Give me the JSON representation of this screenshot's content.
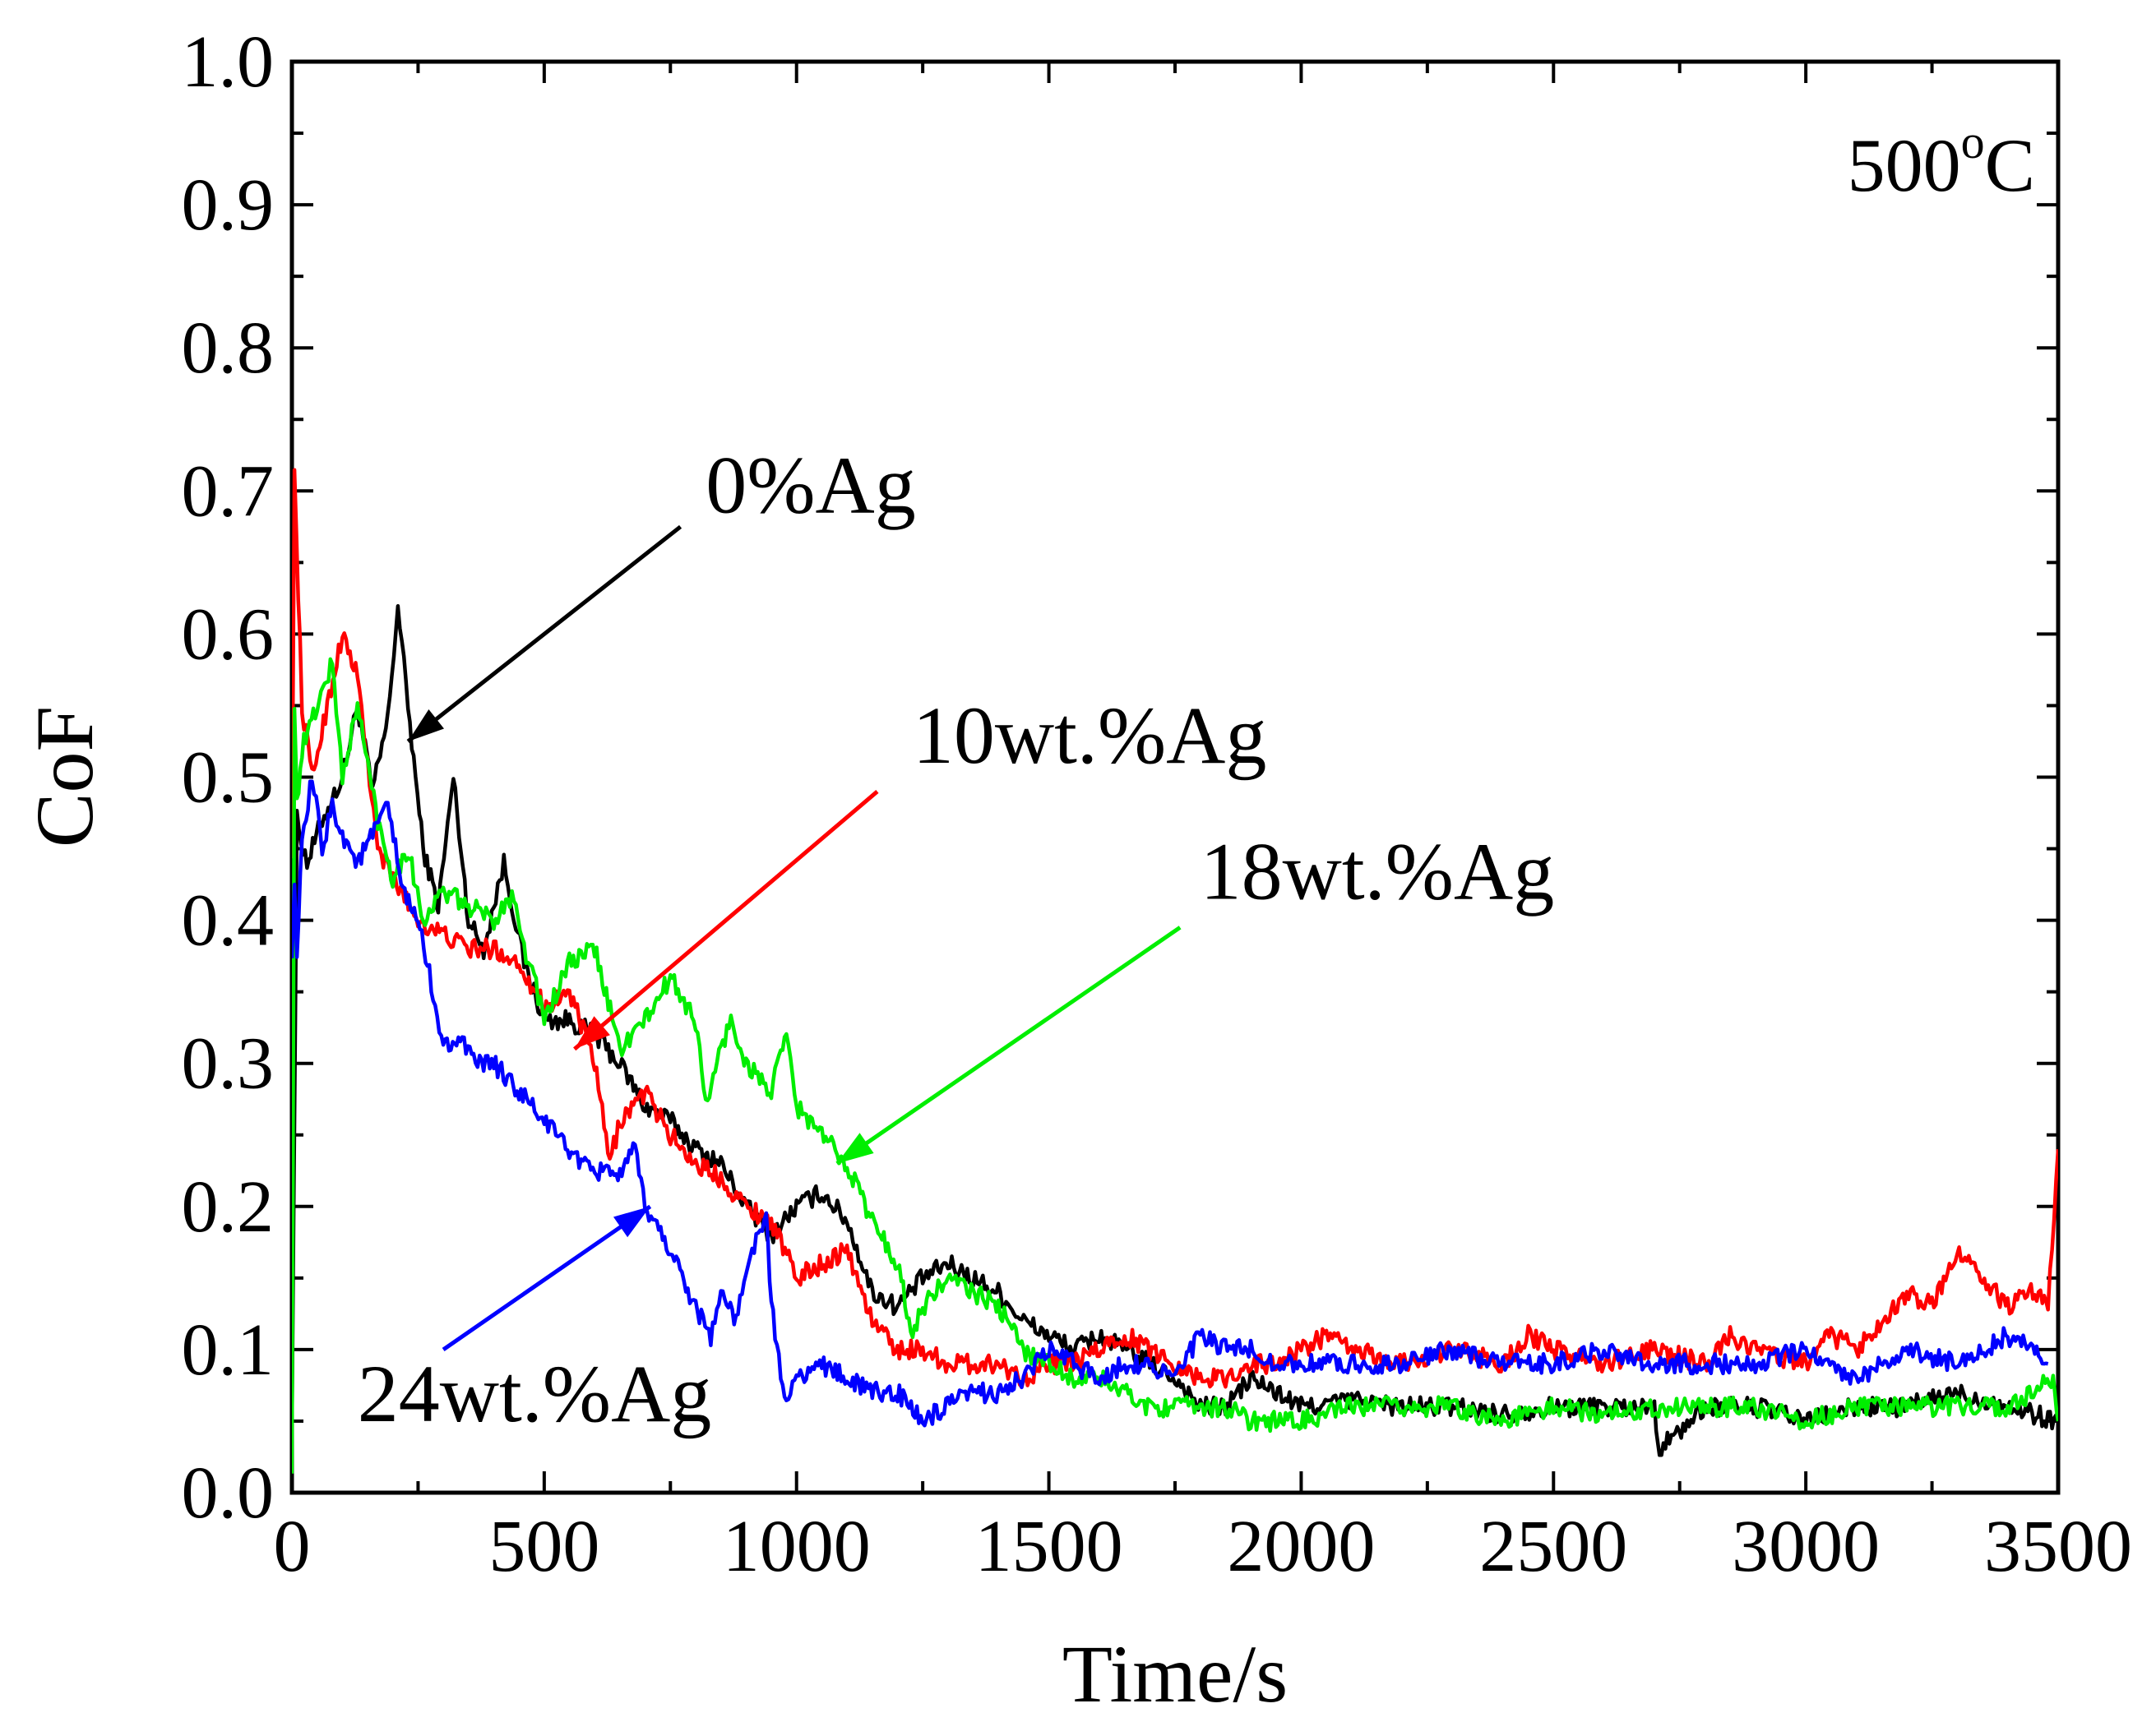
{
  "chart_data": {
    "type": "line",
    "title": "",
    "annotation_temperature": {
      "base": "500",
      "sup": "o",
      "unit": "C"
    },
    "xlabel": "Time/s",
    "ylabel": "CoF",
    "xlim": [
      0,
      3500
    ],
    "ylim": [
      0.0,
      1.0
    ],
    "xticks": [
      0,
      500,
      1000,
      1500,
      2000,
      2500,
      3000,
      3500
    ],
    "xtick_labels": [
      "0",
      "500",
      "1000",
      "1500",
      "2000",
      "2500",
      "3000",
      "3500"
    ],
    "yticks": [
      0.0,
      0.1,
      0.2,
      0.3,
      0.4,
      0.5,
      0.6,
      0.7,
      0.8,
      0.9,
      1.0
    ],
    "ytick_labels": [
      "0.0",
      "0.1",
      "0.2",
      "0.3",
      "0.4",
      "0.5",
      "0.6",
      "0.7",
      "0.8",
      "0.9",
      "1.0"
    ],
    "grid": false,
    "series": [
      {
        "name": "0%Ag",
        "color": "#000000",
        "x": [
          0,
          10,
          30,
          60,
          100,
          130,
          160,
          190,
          210,
          230,
          260,
          290,
          320,
          350,
          380,
          420,
          460,
          500,
          550,
          600,
          650,
          700,
          750,
          800,
          850,
          900,
          950,
          1000,
          1050,
          1100,
          1150,
          1200,
          1250,
          1300,
          1350,
          1400,
          1450,
          1500,
          1550,
          1600,
          1650,
          1700,
          1750,
          1800,
          1850,
          1900,
          1950,
          2000,
          2100,
          2200,
          2300,
          2400,
          2500,
          2600,
          2700,
          2710,
          2800,
          2900,
          3000,
          3100,
          3200,
          3300,
          3400,
          3500
        ],
        "y": [
          0.05,
          0.47,
          0.44,
          0.47,
          0.5,
          0.55,
          0.49,
          0.54,
          0.62,
          0.55,
          0.45,
          0.41,
          0.5,
          0.4,
          0.38,
          0.44,
          0.37,
          0.33,
          0.33,
          0.32,
          0.3,
          0.27,
          0.26,
          0.24,
          0.23,
          0.2,
          0.18,
          0.2,
          0.21,
          0.19,
          0.14,
          0.13,
          0.15,
          0.16,
          0.15,
          0.14,
          0.12,
          0.11,
          0.1,
          0.11,
          0.1,
          0.09,
          0.08,
          0.06,
          0.06,
          0.08,
          0.07,
          0.06,
          0.065,
          0.06,
          0.06,
          0.055,
          0.06,
          0.06,
          0.06,
          0.03,
          0.06,
          0.06,
          0.05,
          0.06,
          0.06,
          0.07,
          0.06,
          0.05
        ]
      },
      {
        "name": "10wt.%Ag",
        "color": "#ff0000",
        "x": [
          0,
          5,
          20,
          40,
          70,
          100,
          130,
          170,
          200,
          250,
          300,
          350,
          400,
          450,
          500,
          550,
          600,
          630,
          650,
          700,
          750,
          800,
          850,
          900,
          950,
          1000,
          1050,
          1100,
          1150,
          1200,
          1250,
          1300,
          1350,
          1400,
          1450,
          1500,
          1550,
          1600,
          1650,
          1700,
          1750,
          1800,
          1850,
          1900,
          1950,
          2000,
          2050,
          2100,
          2200,
          2300,
          2400,
          2450,
          2500,
          2600,
          2700,
          2800,
          2850,
          2900,
          3000,
          3050,
          3100,
          3150,
          3200,
          3250,
          3300,
          3350,
          3400,
          3450,
          3480,
          3500
        ],
        "y": [
          0.45,
          0.71,
          0.55,
          0.5,
          0.55,
          0.6,
          0.57,
          0.45,
          0.43,
          0.4,
          0.39,
          0.38,
          0.38,
          0.37,
          0.34,
          0.35,
          0.3,
          0.23,
          0.26,
          0.28,
          0.25,
          0.23,
          0.22,
          0.2,
          0.19,
          0.15,
          0.16,
          0.17,
          0.12,
          0.1,
          0.1,
          0.09,
          0.09,
          0.09,
          0.08,
          0.09,
          0.09,
          0.1,
          0.11,
          0.1,
          0.09,
          0.08,
          0.08,
          0.09,
          0.09,
          0.1,
          0.11,
          0.1,
          0.09,
          0.1,
          0.09,
          0.11,
          0.1,
          0.09,
          0.1,
          0.09,
          0.11,
          0.1,
          0.09,
          0.11,
          0.1,
          0.12,
          0.14,
          0.13,
          0.17,
          0.15,
          0.13,
          0.14,
          0.13,
          0.24
        ]
      },
      {
        "name": "18wt.%Ag",
        "color": "#00ee00",
        "x": [
          0,
          5,
          10,
          20,
          50,
          80,
          100,
          130,
          170,
          200,
          230,
          260,
          300,
          350,
          400,
          440,
          460,
          480,
          500,
          550,
          600,
          650,
          700,
          750,
          800,
          820,
          850,
          870,
          900,
          950,
          980,
          1000,
          1050,
          1100,
          1150,
          1200,
          1230,
          1250,
          1300,
          1350,
          1400,
          1450,
          1500,
          1550,
          1600,
          1650,
          1700,
          1750,
          1800,
          1850,
          1900,
          1950,
          2000,
          2100,
          2200,
          2300,
          2400,
          2500,
          2600,
          2700,
          2800,
          2900,
          3000,
          3100,
          3200,
          3300,
          3400,
          3490,
          3500
        ],
        "y": [
          0.02,
          0.55,
          0.48,
          0.52,
          0.55,
          0.58,
          0.5,
          0.55,
          0.47,
          0.43,
          0.45,
          0.4,
          0.42,
          0.41,
          0.4,
          0.42,
          0.38,
          0.36,
          0.33,
          0.37,
          0.38,
          0.31,
          0.33,
          0.36,
          0.33,
          0.27,
          0.31,
          0.33,
          0.3,
          0.28,
          0.32,
          0.27,
          0.25,
          0.23,
          0.19,
          0.16,
          0.11,
          0.13,
          0.15,
          0.14,
          0.13,
          0.1,
          0.09,
          0.08,
          0.08,
          0.07,
          0.06,
          0.06,
          0.06,
          0.06,
          0.05,
          0.05,
          0.05,
          0.06,
          0.06,
          0.06,
          0.05,
          0.06,
          0.055,
          0.06,
          0.06,
          0.06,
          0.05,
          0.06,
          0.06,
          0.06,
          0.06,
          0.08,
          0.05
        ]
      },
      {
        "name": "24wt.%Ag",
        "color": "#0000ff",
        "x": [
          0,
          5,
          10,
          20,
          40,
          60,
          80,
          100,
          130,
          160,
          190,
          220,
          250,
          280,
          300,
          330,
          360,
          400,
          450,
          500,
          550,
          600,
          620,
          650,
          680,
          700,
          750,
          800,
          830,
          850,
          880,
          900,
          920,
          940,
          950,
          980,
          1000,
          1050,
          1100,
          1150,
          1200,
          1250,
          1300,
          1350,
          1400,
          1450,
          1500,
          1550,
          1600,
          1650,
          1700,
          1750,
          1800,
          1850,
          1900,
          1950,
          2000,
          2100,
          2200,
          2300,
          2400,
          2500,
          2600,
          2700,
          2800,
          2900,
          3000,
          3100,
          3200,
          3300,
          3400,
          3450,
          3480
        ],
        "y": [
          0.38,
          0.42,
          0.38,
          0.45,
          0.5,
          0.45,
          0.48,
          0.46,
          0.44,
          0.46,
          0.48,
          0.42,
          0.4,
          0.35,
          0.31,
          0.32,
          0.3,
          0.3,
          0.28,
          0.26,
          0.24,
          0.22,
          0.23,
          0.22,
          0.24,
          0.2,
          0.17,
          0.13,
          0.11,
          0.14,
          0.12,
          0.15,
          0.18,
          0.19,
          0.13,
          0.06,
          0.08,
          0.09,
          0.08,
          0.07,
          0.07,
          0.05,
          0.06,
          0.07,
          0.07,
          0.08,
          0.1,
          0.09,
          0.08,
          0.09,
          0.09,
          0.08,
          0.11,
          0.1,
          0.1,
          0.09,
          0.09,
          0.09,
          0.09,
          0.1,
          0.09,
          0.09,
          0.1,
          0.09,
          0.09,
          0.09,
          0.1,
          0.08,
          0.1,
          0.09,
          0.11,
          0.1,
          0.09
        ]
      }
    ],
    "annotations": [
      {
        "text": "0%Ag",
        "series": "0%Ag",
        "color": "#000000",
        "label_at": [
          820,
          0.685
        ],
        "arrow_from": [
          770,
          0.675
        ],
        "arrow_to": [
          230,
          0.525
        ]
      },
      {
        "text": "10wt.%Ag",
        "series": "10wt.%Ag",
        "color": "#ff0000",
        "label_at": [
          1230,
          0.51
        ],
        "arrow_from": [
          1160,
          0.49
        ],
        "arrow_to": [
          560,
          0.31
        ]
      },
      {
        "text": "18wt.%Ag",
        "series": "18wt.%Ag",
        "color": "#00ee00",
        "label_at": [
          1800,
          0.415
        ],
        "arrow_from": [
          1760,
          0.395
        ],
        "arrow_to": [
          1080,
          0.23
        ]
      },
      {
        "text": "24wt.%Ag",
        "series": "24wt.%Ag",
        "color": "#0000ff",
        "label_at": [
          130,
          0.05
        ],
        "arrow_from": [
          300,
          0.1
        ],
        "arrow_to": [
          710,
          0.2
        ]
      }
    ]
  }
}
